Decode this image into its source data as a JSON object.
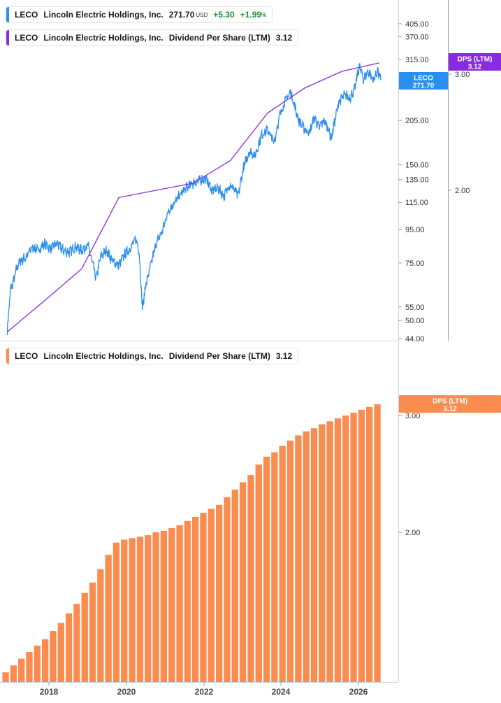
{
  "legends": {
    "price": {
      "ticker": "LECO",
      "company": "Lincoln Electric Holdings, Inc.",
      "price": "271.70",
      "currency": "USD",
      "change": "+5.30",
      "change_pct": "+1.99",
      "pct_sign": "%",
      "color": "#2a8ff0"
    },
    "dps_top": {
      "ticker": "LECO",
      "company": "Lincoln Electric Holdings, Inc.",
      "metric": "Dividend Per Share (LTM)",
      "value": "3.12",
      "color": "#8a2be2"
    },
    "dps_bottom": {
      "ticker": "LECO",
      "company": "Lincoln Electric Holdings, Inc.",
      "metric": "Dividend Per Share (LTM)",
      "value": "3.12",
      "color": "#fb8c4f"
    }
  },
  "axis_badges": {
    "price": {
      "line1": "LECO",
      "line2": "271.70",
      "color": "#2a8ff0"
    },
    "dps_top": {
      "line1": "DPS (LTM)",
      "line2": "3.12",
      "color": "#8a2be2"
    },
    "dps_bottom": {
      "line1": "DPS (LTM)",
      "line2": "3.12",
      "color": "#fb8c4f"
    }
  },
  "chart_data": [
    {
      "type": "line",
      "y_scale": "log",
      "series": [
        {
          "name": "LECO",
          "color": "#2a8ff0",
          "points": [
            [
              "2016-08-01",
              47
            ],
            [
              "2016-09-01",
              62
            ],
            [
              "2016-10-01",
              66
            ],
            [
              "2016-11-01",
              72
            ],
            [
              "2016-12-01",
              76
            ],
            [
              "2017-02-01",
              78
            ],
            [
              "2017-04-01",
              84
            ],
            [
              "2017-06-01",
              82
            ],
            [
              "2017-08-01",
              86
            ],
            [
              "2017-10-01",
              83
            ],
            [
              "2017-12-01",
              86
            ],
            [
              "2018-02-01",
              82
            ],
            [
              "2018-04-01",
              81
            ],
            [
              "2018-06-01",
              84
            ],
            [
              "2018-08-01",
              82
            ],
            [
              "2018-10-01",
              85
            ],
            [
              "2018-11-15",
              75
            ],
            [
              "2018-12-20",
              67
            ],
            [
              "2019-02-01",
              78
            ],
            [
              "2019-04-01",
              82
            ],
            [
              "2019-06-01",
              76
            ],
            [
              "2019-08-01",
              74
            ],
            [
              "2019-10-01",
              80
            ],
            [
              "2019-12-01",
              84
            ],
            [
              "2020-01-15",
              89
            ],
            [
              "2020-02-15",
              82
            ],
            [
              "2020-03-20",
              54
            ],
            [
              "2020-04-15",
              63
            ],
            [
              "2020-06-01",
              72
            ],
            [
              "2020-08-01",
              86
            ],
            [
              "2020-10-01",
              94
            ],
            [
              "2020-12-01",
              109
            ],
            [
              "2021-02-01",
              115
            ],
            [
              "2021-04-01",
              122
            ],
            [
              "2021-06-01",
              128
            ],
            [
              "2021-08-01",
              132
            ],
            [
              "2021-10-01",
              134
            ],
            [
              "2021-12-01",
              136
            ],
            [
              "2022-02-01",
              125
            ],
            [
              "2022-04-01",
              127
            ],
            [
              "2022-06-01",
              120
            ],
            [
              "2022-07-15",
              130
            ],
            [
              "2022-09-01",
              127
            ],
            [
              "2022-10-15",
              120
            ],
            [
              "2022-12-01",
              145
            ],
            [
              "2023-02-01",
              165
            ],
            [
              "2023-04-01",
              160
            ],
            [
              "2023-06-01",
              185
            ],
            [
              "2023-08-01",
              192
            ],
            [
              "2023-10-01",
              175
            ],
            [
              "2023-12-01",
              215
            ],
            [
              "2024-02-01",
              240
            ],
            [
              "2024-03-15",
              250
            ],
            [
              "2024-04-15",
              230
            ],
            [
              "2024-06-01",
              205
            ],
            [
              "2024-08-01",
              192
            ],
            [
              "2024-09-15",
              188
            ],
            [
              "2024-11-01",
              210
            ],
            [
              "2024-12-15",
              195
            ],
            [
              "2025-02-01",
              205
            ],
            [
              "2025-03-15",
              195
            ],
            [
              "2025-04-15",
              180
            ],
            [
              "2025-05-15",
              200
            ],
            [
              "2025-07-01",
              235
            ],
            [
              "2025-09-01",
              245
            ],
            [
              "2025-10-15",
              240
            ],
            [
              "2025-12-01",
              255
            ],
            [
              "2026-01-15",
              300
            ],
            [
              "2026-03-01",
              275
            ],
            [
              "2026-04-15",
              290
            ],
            [
              "2026-06-01",
              272
            ],
            [
              "2026-07-15",
              290
            ],
            [
              "2026-08-15",
              271.7
            ]
          ]
        },
        {
          "name": "DPS (LTM)",
          "color": "#8a2be2",
          "axis": "right",
          "points": [
            [
              "2016-08-01",
              1.22
            ],
            [
              "2017-08-01",
              1.36
            ],
            [
              "2018-08-01",
              1.52
            ],
            [
              "2019-08-01",
              1.95
            ],
            [
              "2020-08-01",
              2.0
            ],
            [
              "2021-08-01",
              2.05
            ],
            [
              "2022-08-01",
              2.22
            ],
            [
              "2023-08-01",
              2.62
            ],
            [
              "2024-08-01",
              2.86
            ],
            [
              "2025-08-01",
              3.03
            ],
            [
              "2026-08-01",
              3.12
            ]
          ]
        }
      ],
      "y_ticks_left": [
        "405.00",
        "370.00",
        "315.00",
        "205.00",
        "150.00",
        "135.00",
        "115.00",
        "95.00",
        "75.00",
        "55.00",
        "50.00",
        "44.00"
      ],
      "y_ticks_right": [
        "3.00",
        "2.00"
      ],
      "ylim_left": [
        44,
        430
      ],
      "ylim_right": [
        1.2,
        3.3
      ]
    },
    {
      "type": "bar",
      "series": [
        {
          "name": "Dividend Per Share (LTM)",
          "color": "#fb8c4f",
          "values": [
            1.23,
            1.26,
            1.29,
            1.32,
            1.35,
            1.38,
            1.42,
            1.46,
            1.51,
            1.56,
            1.62,
            1.68,
            1.76,
            1.85,
            1.93,
            1.95,
            1.96,
            1.97,
            1.98,
            2.0,
            2.01,
            2.03,
            2.05,
            2.08,
            2.11,
            2.14,
            2.17,
            2.2,
            2.26,
            2.32,
            2.38,
            2.44,
            2.53,
            2.6,
            2.64,
            2.7,
            2.75,
            2.8,
            2.84,
            2.87,
            2.91,
            2.94,
            2.97,
            3.0,
            3.03,
            3.06,
            3.09,
            3.12
          ]
        }
      ],
      "x_ticks": [
        "2018",
        "2020",
        "2022",
        "2024",
        "2026"
      ],
      "y_ticks": [
        "3.00",
        "2.00"
      ],
      "ylim": [
        1.2,
        3.3
      ]
    }
  ]
}
